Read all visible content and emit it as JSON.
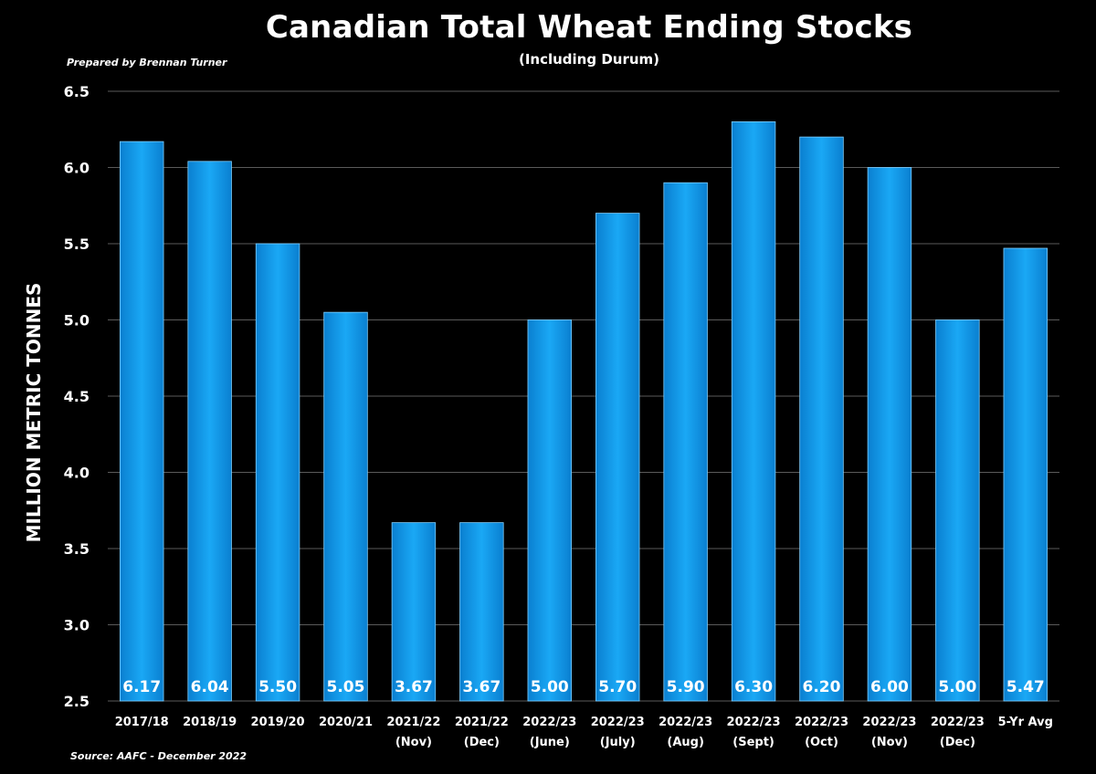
{
  "title": "Canadian Total Wheat Ending Stocks",
  "subtitle": "(Including Durum)",
  "prepared_by": "Prepared by Brennan Turner",
  "source": "Source: AAFC -  December 2022",
  "colors": {
    "background": "#000000",
    "bar": "#1aa8f5",
    "bar_dark": "#0a7fd0",
    "grid": "#5a5a5a"
  },
  "chart_data": {
    "type": "bar",
    "title": "Canadian Total Wheat Ending Stocks",
    "subtitle": "(Including Durum)",
    "xlabel": "",
    "ylabel": "MILLION METRIC TONNES",
    "ylim": [
      2.5,
      6.5
    ],
    "yticks": [
      "2.5",
      "3.0",
      "3.5",
      "4.0",
      "4.5",
      "5.0",
      "5.5",
      "6.0",
      "6.5"
    ],
    "grid": true,
    "categories": [
      [
        "2017/18"
      ],
      [
        "2018/19"
      ],
      [
        "2019/20"
      ],
      [
        "2020/21"
      ],
      [
        "2021/22",
        "(Nov)"
      ],
      [
        "2021/22",
        "(Dec)"
      ],
      [
        "2022/23",
        "(June)"
      ],
      [
        "2022/23",
        "(July)"
      ],
      [
        "2022/23",
        "(Aug)"
      ],
      [
        "2022/23",
        "(Sept)"
      ],
      [
        "2022/23",
        "(Oct)"
      ],
      [
        "2022/23",
        "(Nov)"
      ],
      [
        "2022/23",
        "(Dec)"
      ],
      [
        "5-Yr Avg"
      ]
    ],
    "values": [
      6.17,
      6.04,
      5.5,
      5.05,
      3.67,
      3.67,
      5.0,
      5.7,
      5.9,
      6.3,
      6.2,
      6.0,
      5.0,
      5.47
    ],
    "data_labels": [
      "6.17",
      "6.04",
      "5.50",
      "5.05",
      "3.67",
      "3.67",
      "5.00",
      "5.70",
      "5.90",
      "6.30",
      "6.20",
      "6.00",
      "5.00",
      "5.47"
    ]
  }
}
